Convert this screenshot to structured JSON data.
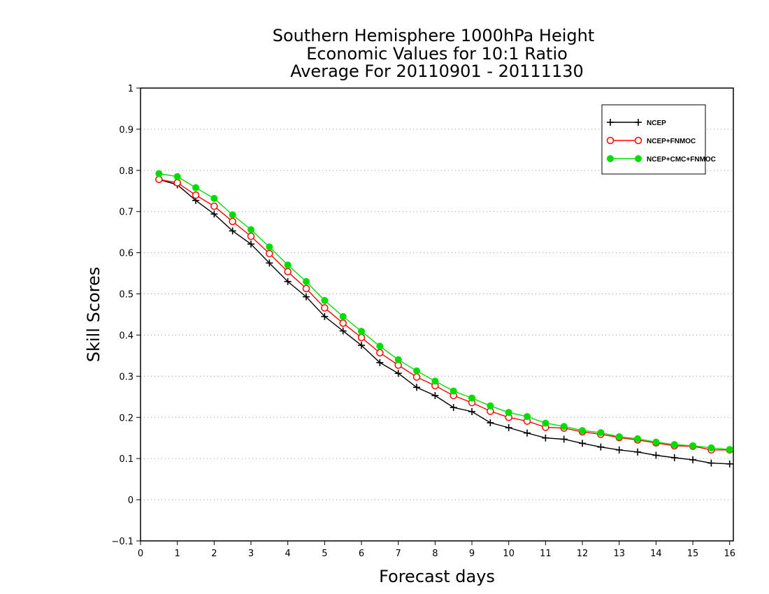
{
  "chart_data": {
    "type": "line",
    "title": [
      "Southern Hemisphere 1000hPa Height",
      "Economic Values for 10:1 Ratio",
      "Average For 20110901 - 20111130"
    ],
    "xlabel": "Forecast days",
    "ylabel": "Skill Scores",
    "xlim": [
      0,
      16.1
    ],
    "ylim": [
      -0.1,
      1
    ],
    "x_ticks": [
      "0",
      "1",
      "2",
      "3",
      "4",
      "5",
      "6",
      "7",
      "8",
      "9",
      "10",
      "11",
      "12",
      "13",
      "14",
      "15",
      "16"
    ],
    "y_ticks": [
      "−0.1",
      "0",
      "0.1",
      "0.2",
      "0.3",
      "0.4",
      "0.5",
      "0.6",
      "0.7",
      "0.8",
      "0.9",
      "1"
    ],
    "grid": true,
    "legend_position": "top-right",
    "x": [
      0.5,
      1,
      1.5,
      2,
      2.5,
      3,
      3.5,
      4,
      4.5,
      5,
      5.5,
      6,
      6.5,
      7,
      7.5,
      8,
      8.5,
      9,
      9.5,
      10,
      10.5,
      11,
      11.5,
      12,
      12.5,
      13,
      13.5,
      14,
      14.5,
      15,
      15.5,
      16
    ],
    "series": [
      {
        "name": "NCEP",
        "color": "#000000",
        "marker": "plus",
        "values": [
          0.778,
          0.765,
          0.727,
          0.694,
          0.653,
          0.621,
          0.575,
          0.53,
          0.493,
          0.445,
          0.41,
          0.375,
          0.333,
          0.307,
          0.273,
          0.253,
          0.224,
          0.214,
          0.187,
          0.175,
          0.162,
          0.15,
          0.147,
          0.137,
          0.128,
          0.121,
          0.116,
          0.108,
          0.102,
          0.097,
          0.089,
          0.087
        ]
      },
      {
        "name": "NCEP+FNMOC",
        "color": "#ff0000",
        "marker": "open-circle",
        "values": [
          0.778,
          0.77,
          0.74,
          0.713,
          0.676,
          0.64,
          0.598,
          0.554,
          0.513,
          0.466,
          0.429,
          0.394,
          0.357,
          0.327,
          0.298,
          0.277,
          0.253,
          0.236,
          0.215,
          0.2,
          0.191,
          0.176,
          0.174,
          0.165,
          0.159,
          0.151,
          0.145,
          0.138,
          0.131,
          0.13,
          0.121,
          0.121
        ]
      },
      {
        "name": "NCEP+CMC+FNMOC",
        "color": "#00dd00",
        "marker": "filled-circle",
        "values": [
          0.792,
          0.785,
          0.758,
          0.732,
          0.692,
          0.656,
          0.614,
          0.57,
          0.53,
          0.484,
          0.445,
          0.409,
          0.373,
          0.34,
          0.313,
          0.288,
          0.264,
          0.247,
          0.228,
          0.212,
          0.202,
          0.186,
          0.178,
          0.168,
          0.163,
          0.153,
          0.148,
          0.14,
          0.134,
          0.131,
          0.126,
          0.122
        ]
      }
    ]
  }
}
